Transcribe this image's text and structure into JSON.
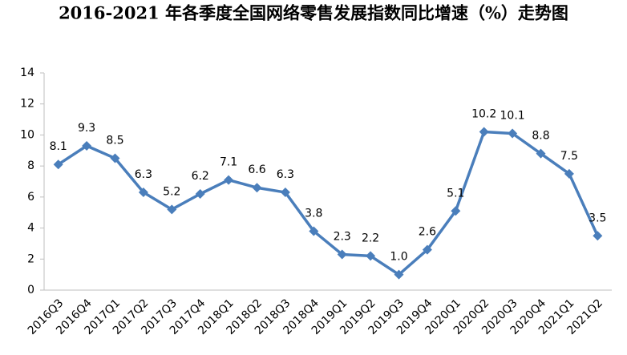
{
  "chart_data": {
    "type": "line",
    "title": "2016-2021 年各季度全国网络零售发展指数同比增速（%）走势图",
    "categories": [
      "2016Q3",
      "2016Q4",
      "2017Q1",
      "2017Q2",
      "2017Q3",
      "2017Q4",
      "2018Q1",
      "2018Q2",
      "2018Q3",
      "2018Q4",
      "2019Q1",
      "2019Q2",
      "2019Q3",
      "2019Q4",
      "2020Q1",
      "2020Q2",
      "2020Q3",
      "2020Q4",
      "2021Q1",
      "2021Q2"
    ],
    "values": [
      8.1,
      9.3,
      8.5,
      6.3,
      5.2,
      6.2,
      7.1,
      6.6,
      6.3,
      3.8,
      2.3,
      2.2,
      1.0,
      2.6,
      5.1,
      10.2,
      10.1,
      8.8,
      7.5,
      3.5
    ],
    "value_labels": [
      "8.1",
      "9.3",
      "8.5",
      "6.3",
      "5.2",
      "6.2",
      "7.1",
      "6.6",
      "6.3",
      "3.8",
      "2.3",
      "2.2",
      "1.0",
      "2.6",
      "5.1",
      "10.2",
      "10.1",
      "8.8",
      "7.5",
      "3.5"
    ],
    "color": "#4a7ebb",
    "ylim": [
      0,
      14
    ],
    "yticks": [
      0,
      2,
      4,
      6,
      8,
      10,
      12,
      14
    ],
    "grid": false
  }
}
